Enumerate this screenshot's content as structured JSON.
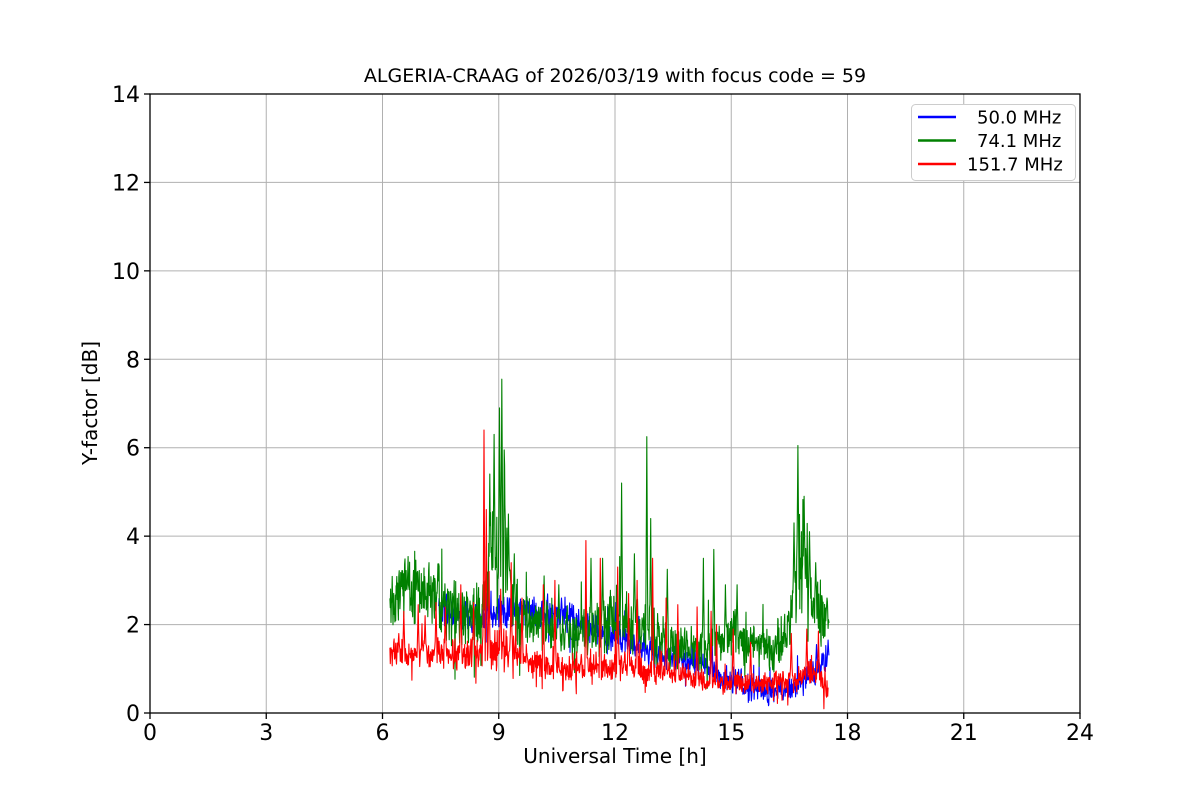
{
  "chart_data": {
    "type": "line",
    "title": "ALGERIA-CRAAG of 2026/03/19 with focus code = 59",
    "xlabel": "Universal Time [h]",
    "ylabel": "Y-factor [dB]",
    "xlim": [
      0,
      24
    ],
    "ylim": [
      0,
      14
    ],
    "xticks": [
      0,
      3,
      6,
      9,
      12,
      15,
      18,
      21,
      24
    ],
    "yticks": [
      0,
      2,
      4,
      6,
      8,
      10,
      12,
      14
    ],
    "grid": true,
    "grid_color": "#b0b0b0",
    "legend": {
      "position": "upper right",
      "entries": [
        {
          "label": "50.0 MHz",
          "color": "#0000ff"
        },
        {
          "label": "74.1 MHz",
          "color": "#008000"
        },
        {
          "label": "151.7 MHz",
          "color": "#ff0000"
        }
      ]
    },
    "representation": "very noisy time series; each series stored as baseline envelope [time_h, mean_dB, half_range_dB] plus isolated spikes [time_h, peak_dB]",
    "series": [
      {
        "name": "50.0 MHz",
        "color": "#0000ff",
        "start": 7.45,
        "end": 17.52,
        "seed": 11,
        "baseline": [
          [
            7.45,
            2.4,
            0.35
          ],
          [
            8.3,
            2.15,
            0.3
          ],
          [
            8.8,
            2.25,
            0.3
          ],
          [
            9.3,
            2.35,
            0.35
          ],
          [
            10.0,
            2.25,
            0.3
          ],
          [
            10.6,
            2.2,
            0.35
          ],
          [
            11.2,
            2.0,
            0.35
          ],
          [
            11.8,
            1.75,
            0.35
          ],
          [
            12.4,
            1.6,
            0.35
          ],
          [
            13.0,
            1.35,
            0.3
          ],
          [
            13.6,
            1.2,
            0.25
          ],
          [
            14.2,
            1.1,
            0.3
          ],
          [
            14.8,
            0.8,
            0.3
          ],
          [
            15.4,
            0.6,
            0.3
          ],
          [
            16.0,
            0.45,
            0.3
          ],
          [
            16.5,
            0.6,
            0.3
          ],
          [
            17.0,
            0.85,
            0.35
          ],
          [
            17.3,
            1.05,
            0.35
          ],
          [
            17.52,
            1.2,
            0.35
          ]
        ],
        "spikes": [
          [
            10.62,
            2.6
          ],
          [
            12.02,
            2.5
          ],
          [
            14.5,
            1.9
          ],
          [
            17.2,
            1.55
          ],
          [
            17.5,
            1.65
          ]
        ]
      },
      {
        "name": "74.1 MHz",
        "color": "#008000",
        "start": 6.19,
        "end": 17.53,
        "seed": 22,
        "baseline": [
          [
            6.19,
            2.7,
            0.6
          ],
          [
            6.5,
            2.9,
            0.75
          ],
          [
            7.0,
            2.8,
            0.75
          ],
          [
            7.5,
            2.55,
            0.75
          ],
          [
            8.0,
            2.1,
            0.7
          ],
          [
            8.5,
            2.2,
            0.7
          ],
          [
            8.8,
            3.3,
            1.3
          ],
          [
            9.1,
            3.6,
            1.6
          ],
          [
            9.35,
            2.5,
            0.7
          ],
          [
            9.8,
            2.0,
            0.6
          ],
          [
            10.5,
            1.9,
            0.55
          ],
          [
            11.0,
            1.8,
            0.5
          ],
          [
            11.6,
            1.9,
            0.6
          ],
          [
            12.1,
            2.1,
            0.7
          ],
          [
            12.6,
            2.0,
            0.7
          ],
          [
            13.1,
            1.7,
            0.6
          ],
          [
            13.6,
            1.5,
            0.5
          ],
          [
            14.1,
            1.4,
            0.45
          ],
          [
            14.6,
            1.6,
            0.5
          ],
          [
            15.1,
            1.8,
            0.55
          ],
          [
            15.6,
            1.6,
            0.5
          ],
          [
            16.1,
            1.4,
            0.5
          ],
          [
            16.45,
            1.8,
            0.6
          ],
          [
            16.75,
            3.4,
            1.1
          ],
          [
            17.05,
            2.7,
            0.7
          ],
          [
            17.3,
            2.2,
            0.7
          ],
          [
            17.53,
            2.2,
            0.5
          ]
        ],
        "spikes": [
          [
            8.77,
            4.6
          ],
          [
            8.88,
            6.3
          ],
          [
            9.02,
            6.9
          ],
          [
            9.08,
            7.55
          ],
          [
            9.15,
            5.6
          ],
          [
            9.25,
            4.5
          ],
          [
            9.4,
            3.6
          ],
          [
            10.17,
            3.1
          ],
          [
            10.55,
            2.9
          ],
          [
            11.38,
            3.5
          ],
          [
            11.68,
            3.5
          ],
          [
            12.17,
            5.2
          ],
          [
            12.5,
            3.6
          ],
          [
            12.82,
            6.25
          ],
          [
            12.92,
            4.4
          ],
          [
            13.35,
            3.25
          ],
          [
            14.28,
            3.5
          ],
          [
            14.55,
            3.7
          ],
          [
            14.85,
            2.9
          ],
          [
            15.15,
            2.9
          ],
          [
            16.62,
            4.3
          ],
          [
            16.72,
            6.05
          ],
          [
            16.88,
            4.9
          ],
          [
            17.02,
            4.1
          ],
          [
            17.18,
            3.4
          ],
          [
            17.47,
            2.6
          ]
        ]
      },
      {
        "name": "151.7 MHz",
        "color": "#ff0000",
        "start": 6.19,
        "end": 17.5,
        "seed": 33,
        "baseline": [
          [
            6.19,
            1.35,
            0.35
          ],
          [
            7.0,
            1.35,
            0.35
          ],
          [
            7.8,
            1.3,
            0.35
          ],
          [
            8.5,
            1.4,
            0.4
          ],
          [
            9.0,
            1.45,
            0.4
          ],
          [
            9.6,
            1.25,
            0.35
          ],
          [
            10.2,
            1.05,
            0.3
          ],
          [
            10.8,
            1.0,
            0.3
          ],
          [
            11.4,
            1.05,
            0.35
          ],
          [
            12.0,
            1.1,
            0.35
          ],
          [
            12.6,
            1.0,
            0.3
          ],
          [
            13.2,
            0.9,
            0.3
          ],
          [
            13.8,
            0.85,
            0.25
          ],
          [
            14.4,
            0.72,
            0.25
          ],
          [
            15.0,
            0.68,
            0.25
          ],
          [
            15.6,
            0.65,
            0.22
          ],
          [
            16.2,
            0.7,
            0.25
          ],
          [
            16.8,
            0.8,
            0.3
          ],
          [
            17.2,
            0.9,
            0.3
          ],
          [
            17.42,
            0.7,
            0.3
          ],
          [
            17.5,
            0.5,
            0.2
          ]
        ],
        "spikes": [
          [
            6.55,
            2.3
          ],
          [
            6.92,
            2.45
          ],
          [
            7.1,
            2.2
          ],
          [
            7.38,
            2.5
          ],
          [
            7.62,
            2.4
          ],
          [
            8.02,
            2.9
          ],
          [
            8.35,
            2.5
          ],
          [
            8.62,
            6.4
          ],
          [
            8.68,
            4.6
          ],
          [
            8.75,
            3.2
          ],
          [
            9.05,
            2.8
          ],
          [
            9.32,
            3.4
          ],
          [
            9.6,
            2.6
          ],
          [
            10.15,
            2.9
          ],
          [
            10.45,
            3.0
          ],
          [
            11.25,
            3.9
          ],
          [
            11.62,
            3.5
          ],
          [
            12.07,
            3.3
          ],
          [
            12.35,
            2.7
          ],
          [
            12.57,
            3.0
          ],
          [
            12.97,
            3.5
          ],
          [
            13.32,
            2.6
          ],
          [
            13.62,
            2.45
          ],
          [
            14.12,
            2.4
          ],
          [
            14.48,
            2.3
          ],
          [
            14.62,
            2.0
          ],
          [
            15.05,
            1.9
          ],
          [
            15.5,
            1.6
          ],
          [
            16.55,
            1.8
          ],
          [
            16.95,
            1.9
          ],
          [
            17.25,
            1.85
          ]
        ]
      }
    ]
  }
}
